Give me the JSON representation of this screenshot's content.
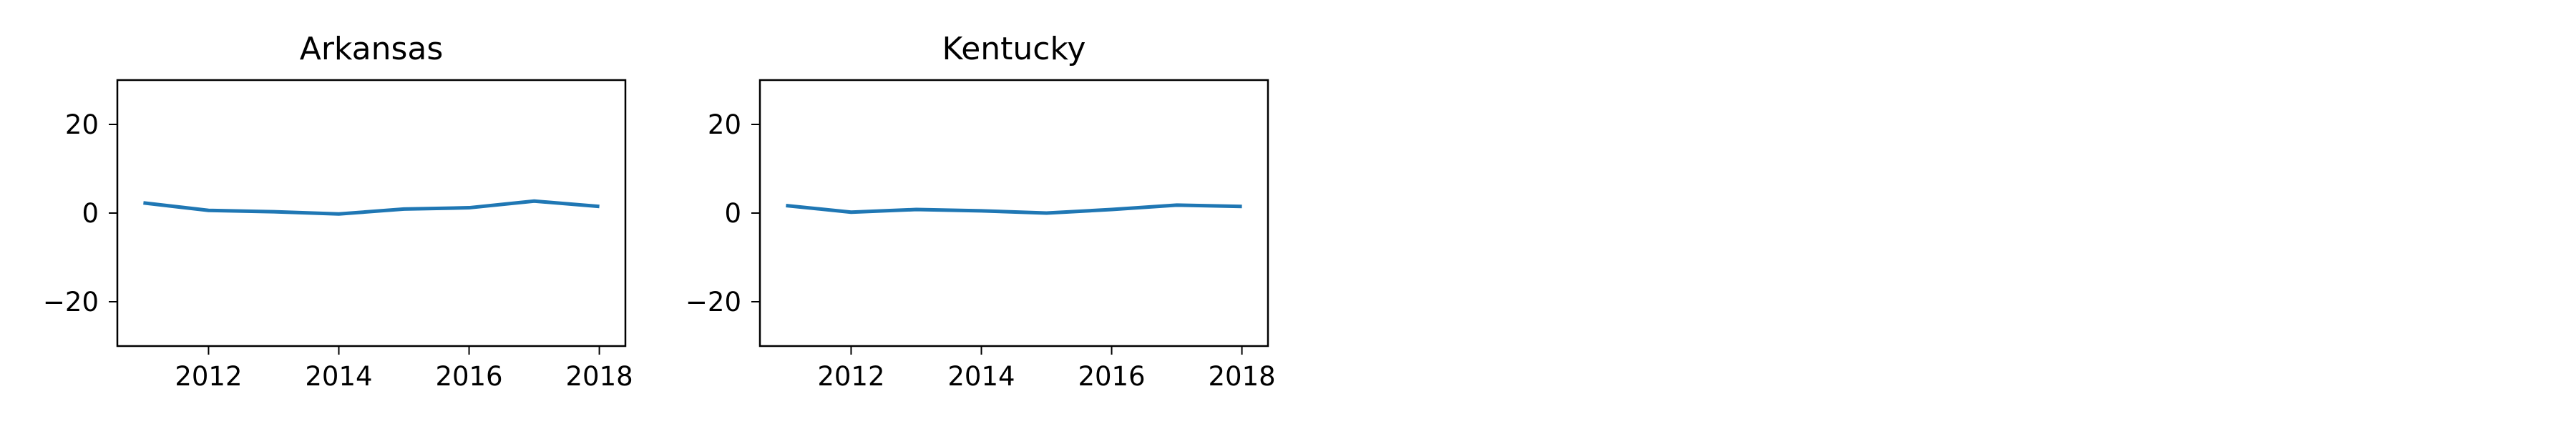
{
  "chart_data": [
    {
      "type": "line",
      "title": "Arkansas",
      "xlabel": "",
      "ylabel": "",
      "x": [
        2011,
        2012,
        2013,
        2014,
        2015,
        2016,
        2017,
        2018
      ],
      "series": [
        {
          "values": [
            2.3,
            0.6,
            0.3,
            -0.2,
            0.9,
            1.2,
            2.7,
            1.5
          ]
        }
      ],
      "xlim": [
        2010.6,
        2018.4
      ],
      "ylim": [
        -30,
        30
      ],
      "xticks": [
        2012,
        2014,
        2016,
        2018
      ],
      "yticks": [
        20,
        0,
        -20
      ],
      "ytick_labels": [
        "20",
        "0",
        "−20"
      ],
      "grid": false,
      "color": "#1f77b4"
    },
    {
      "type": "line",
      "title": "Kentucky",
      "xlabel": "",
      "ylabel": "",
      "x": [
        2011,
        2012,
        2013,
        2014,
        2015,
        2016,
        2017,
        2018
      ],
      "series": [
        {
          "values": [
            1.7,
            0.2,
            0.8,
            0.5,
            0.0,
            0.8,
            1.8,
            1.5
          ]
        }
      ],
      "xlim": [
        2010.6,
        2018.4
      ],
      "ylim": [
        -30,
        30
      ],
      "xticks": [
        2012,
        2014,
        2016,
        2018
      ],
      "yticks": [
        20,
        0,
        -20
      ],
      "ytick_labels": [
        "20",
        "0",
        "−20"
      ],
      "grid": false,
      "color": "#1f77b4"
    }
  ]
}
